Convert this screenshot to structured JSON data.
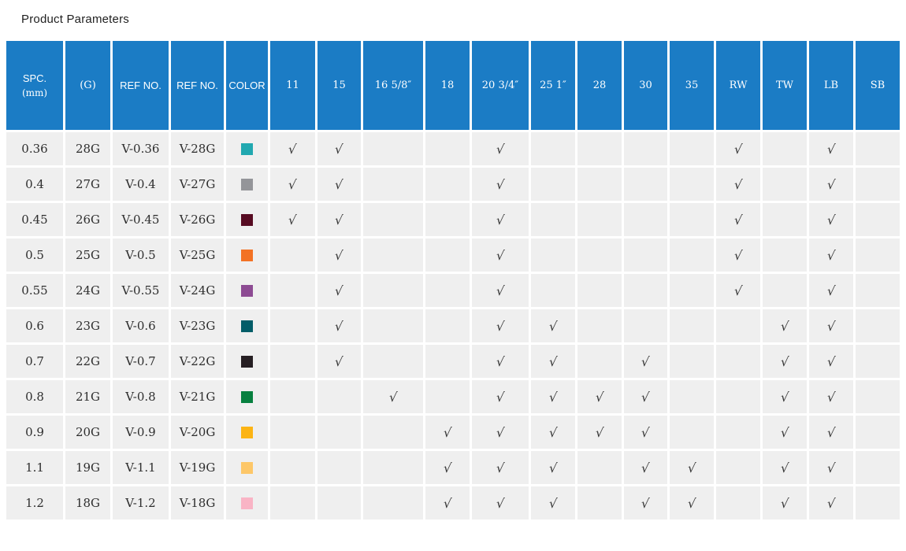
{
  "page": {
    "title": "Product Parameters"
  },
  "colors": {
    "header_bg": "#1b7cc5",
    "header_text": "#ffffff",
    "row_bg": "#efefef",
    "body_text": "#2e2e2e",
    "check": "#3a3a3a",
    "highlight": "#f56a1c"
  },
  "table": {
    "check_glyph": "√",
    "columns": [
      {
        "id": "spc",
        "label": "SPC.",
        "sublabel": "(mm)"
      },
      {
        "id": "gauge",
        "label": "(G)"
      },
      {
        "id": "ref1",
        "label": "REF NO."
      },
      {
        "id": "ref2",
        "label": "REF NO."
      },
      {
        "id": "color",
        "label": "COLOR"
      },
      {
        "id": "c11",
        "label": "11"
      },
      {
        "id": "c15",
        "label": "15"
      },
      {
        "id": "c16",
        "label": "16 5/8″"
      },
      {
        "id": "c18",
        "label": "18"
      },
      {
        "id": "c20",
        "label": "20 3/4″"
      },
      {
        "id": "c25",
        "label": "25 1″"
      },
      {
        "id": "c28",
        "label": "28"
      },
      {
        "id": "c30",
        "label": "30"
      },
      {
        "id": "c35",
        "label": "35"
      },
      {
        "id": "rw",
        "label": "RW"
      },
      {
        "id": "tw",
        "label": "TW"
      },
      {
        "id": "lb",
        "label": "LB"
      },
      {
        "id": "sb",
        "label": "SB"
      }
    ],
    "rows": [
      {
        "spc": "0.36",
        "gauge": "28G",
        "ref1": "V-0.36",
        "ref2": "V-28G",
        "ref2_highlight": false,
        "color": "#21a8b0",
        "checks": [
          "c11",
          "c15",
          "c20",
          "rw",
          "lb"
        ]
      },
      {
        "spc": "0.4",
        "gauge": "27G",
        "ref1": "V-0.4",
        "ref2": "V-27G",
        "ref2_highlight": false,
        "color": "#949599",
        "checks": [
          "c11",
          "c15",
          "c20",
          "rw",
          "lb"
        ]
      },
      {
        "spc": "0.45",
        "gauge": "26G",
        "ref1": "V-0.45",
        "ref2": "V-26G",
        "ref2_highlight": false,
        "color": "#570b22",
        "checks": [
          "c11",
          "c15",
          "c20",
          "rw",
          "lb"
        ]
      },
      {
        "spc": "0.5",
        "gauge": "25G",
        "ref1": "V-0.5",
        "ref2": "V-25G",
        "ref2_highlight": false,
        "color": "#f37224",
        "checks": [
          "c15",
          "c20",
          "rw",
          "lb"
        ]
      },
      {
        "spc": "0.55",
        "gauge": "24G",
        "ref1": "V-0.55",
        "ref2": "V-24G",
        "ref2_highlight": false,
        "color": "#8d4b93",
        "checks": [
          "c15",
          "c20",
          "rw",
          "lb"
        ]
      },
      {
        "spc": "0.6",
        "gauge": "23G",
        "ref1": "V-0.6",
        "ref2": "V-23G",
        "ref2_highlight": false,
        "color": "#025d68",
        "checks": [
          "c15",
          "c20",
          "c25",
          "tw",
          "lb"
        ]
      },
      {
        "spc": "0.7",
        "gauge": "22G",
        "ref1": "V-0.7",
        "ref2": "V-22G",
        "ref2_highlight": false,
        "color": "#261f23",
        "checks": [
          "c15",
          "c20",
          "c25",
          "c30",
          "tw",
          "lb"
        ]
      },
      {
        "spc": "0.8",
        "gauge": "21G",
        "ref1": "V-0.8",
        "ref2": "V-21G",
        "ref2_highlight": false,
        "color": "#07803f",
        "checks": [
          "c16",
          "c20",
          "c25",
          "c28",
          "c30",
          "tw",
          "lb"
        ]
      },
      {
        "spc": "0.9",
        "gauge": "20G",
        "ref1": "V-0.9",
        "ref2": "V-20G",
        "ref2_highlight": true,
        "color": "#fcb414",
        "checks": [
          "c18",
          "c20",
          "c25",
          "c28",
          "c30",
          "tw",
          "lb"
        ]
      },
      {
        "spc": "1.1",
        "gauge": "19G",
        "ref1": "V-1.1",
        "ref2": "V-19G",
        "ref2_highlight": false,
        "color": "#fdc768",
        "checks": [
          "c18",
          "c20",
          "c25",
          "c30",
          "c35",
          "tw",
          "lb"
        ]
      },
      {
        "spc": "1.2",
        "gauge": "18G",
        "ref1": "V-1.2",
        "ref2": "V-18G",
        "ref2_highlight": false,
        "color": "#f9b4c5",
        "checks": [
          "c18",
          "c20",
          "c25",
          "c30",
          "c35",
          "tw",
          "lb"
        ]
      }
    ]
  }
}
